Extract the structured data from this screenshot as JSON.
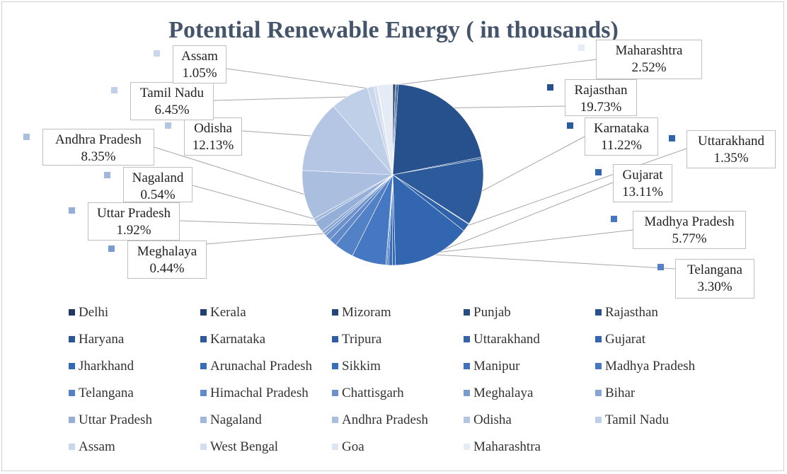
{
  "chart_data": {
    "type": "pie",
    "title": "Potential Renewable Energy ( in thousands)",
    "slices": [
      {
        "label": "Delhi",
        "value": 0.0,
        "color": "#1f3864"
      },
      {
        "label": "Kerala",
        "value": 0.4,
        "color": "#21406f"
      },
      {
        "label": "Mizoram",
        "value": 0.2,
        "color": "#23477a"
      },
      {
        "label": "Punjab",
        "value": 0.3,
        "color": "#254d84"
      },
      {
        "label": "Rajasthan",
        "value": 19.73,
        "color": "#27518c"
      },
      {
        "label": "Haryana",
        "value": 0.3,
        "color": "#2a5694"
      },
      {
        "label": "Karnataka",
        "value": 11.22,
        "color": "#2d5a9a"
      },
      {
        "label": "Tripura",
        "value": 0.1,
        "color": "#2f5fa3"
      },
      {
        "label": "Uttarakhand",
        "value": 1.35,
        "color": "#3163aa"
      },
      {
        "label": "Gujarat",
        "value": 13.11,
        "color": "#3266b0"
      },
      {
        "label": "Jharkhand",
        "value": 0.5,
        "color": "#3469b5"
      },
      {
        "label": "Arunachal Pradesh",
        "value": 0.6,
        "color": "#376cb8"
      },
      {
        "label": "Sikkim",
        "value": 0.3,
        "color": "#3a6fba"
      },
      {
        "label": "Manipur",
        "value": 0.2,
        "color": "#3d72bd"
      },
      {
        "label": "Madhya Pradesh",
        "value": 5.77,
        "color": "#4577c2"
      },
      {
        "label": "Telangana",
        "value": 3.3,
        "color": "#5381c6"
      },
      {
        "label": "Himachal Pradesh",
        "value": 1.3,
        "color": "#6089c9"
      },
      {
        "label": "Chattisgarh",
        "value": 1.0,
        "color": "#6c91cc"
      },
      {
        "label": "Meghalaya",
        "value": 0.44,
        "color": "#7a9bd0"
      },
      {
        "label": "Bihar",
        "value": 0.5,
        "color": "#87a4d4"
      },
      {
        "label": "Uttar Pradesh",
        "value": 1.92,
        "color": "#94aed8"
      },
      {
        "label": "Nagaland",
        "value": 0.54,
        "color": "#a0b6dc"
      },
      {
        "label": "Andhra Pradesh",
        "value": 8.35,
        "color": "#aabfe0"
      },
      {
        "label": "Odisha",
        "value": 12.13,
        "color": "#b4c6e3"
      },
      {
        "label": "Tamil Nadu",
        "value": 6.45,
        "color": "#bfcfe7"
      },
      {
        "label": "Assam",
        "value": 1.05,
        "color": "#c9d6eb"
      },
      {
        "label": "West Bengal",
        "value": 0.6,
        "color": "#d3deef"
      },
      {
        "label": "Goa",
        "value": 0.1,
        "color": "#dde5f3"
      },
      {
        "label": "Maharashtra",
        "value": 2.52,
        "color": "#e6ecf6"
      }
    ],
    "data_labels": [
      {
        "label": "Maharashtra",
        "percent": "2.52%"
      },
      {
        "label": "Rajasthan",
        "percent": "19.73%"
      },
      {
        "label": "Karnataka",
        "percent": "11.22%"
      },
      {
        "label": "Uttarakhand",
        "percent": "1.35%"
      },
      {
        "label": "Gujarat",
        "percent": "13.11%"
      },
      {
        "label": "Madhya Pradesh",
        "percent": "5.77%"
      },
      {
        "label": "Telangana",
        "percent": "3.30%"
      },
      {
        "label": "Meghalaya",
        "percent": "0.44%"
      },
      {
        "label": "Uttar Pradesh",
        "percent": "1.92%"
      },
      {
        "label": "Nagaland",
        "percent": "0.54%"
      },
      {
        "label": "Andhra Pradesh",
        "percent": "8.35%"
      },
      {
        "label": "Odisha",
        "percent": "12.13%"
      },
      {
        "label": "Tamil Nadu",
        "percent": "6.45%"
      },
      {
        "label": "Assam",
        "percent": "1.05%"
      }
    ],
    "legend": {
      "placement": "bottom",
      "entries": [
        "Delhi",
        "Kerala",
        "Mizoram",
        "Punjab",
        "Rajasthan",
        "Haryana",
        "Karnataka",
        "Tripura",
        "Uttarakhand",
        "Gujarat",
        "Jharkhand",
        "Arunachal Pradesh",
        "Sikkim",
        "Manipur",
        "Madhya Pradesh",
        "Telangana",
        "Himachal Pradesh",
        "Chattisgarh",
        "Meghalaya",
        "Bihar",
        "Uttar Pradesh",
        "Nagaland",
        "Andhra Pradesh",
        "Odisha",
        "Tamil Nadu",
        "Assam",
        "West Bengal",
        "Goa",
        "Maharashtra"
      ]
    }
  }
}
